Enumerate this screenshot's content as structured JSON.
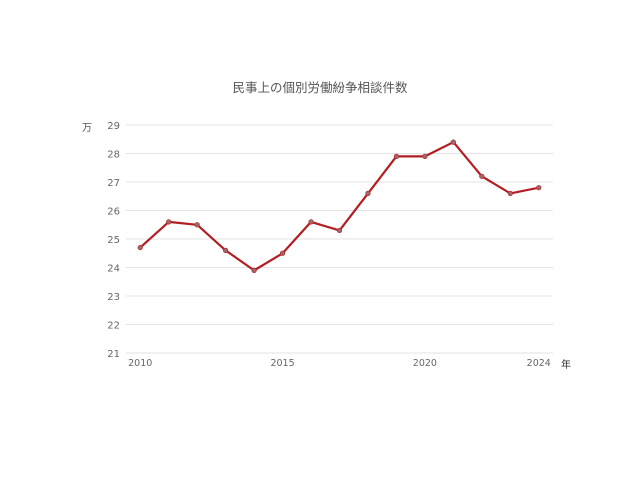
{
  "chart_data": {
    "type": "line",
    "title": "民事上の個別労働紛争相談件数",
    "ylabel": "万",
    "xlabel": "年",
    "x": [
      2010,
      2011,
      2012,
      2013,
      2014,
      2015,
      2016,
      2017,
      2018,
      2019,
      2020,
      2021,
      2022,
      2023,
      2024
    ],
    "series": [
      {
        "values": [
          24.7,
          25.6,
          25.5,
          24.6,
          23.9,
          24.5,
          25.6,
          25.3,
          26.6,
          27.9,
          27.9,
          28.4,
          27.2,
          26.6,
          26.8
        ]
      }
    ],
    "ylim": [
      21,
      29
    ],
    "yticks": [
      21,
      22,
      23,
      24,
      25,
      26,
      27,
      28,
      29
    ],
    "xticks": [
      2010,
      2015,
      2020,
      2024
    ],
    "grid": true,
    "colors": {
      "line": "#b21e23",
      "marker": "#a0676b",
      "grid": "#e3e3e3",
      "axis_text": "#666666"
    }
  }
}
